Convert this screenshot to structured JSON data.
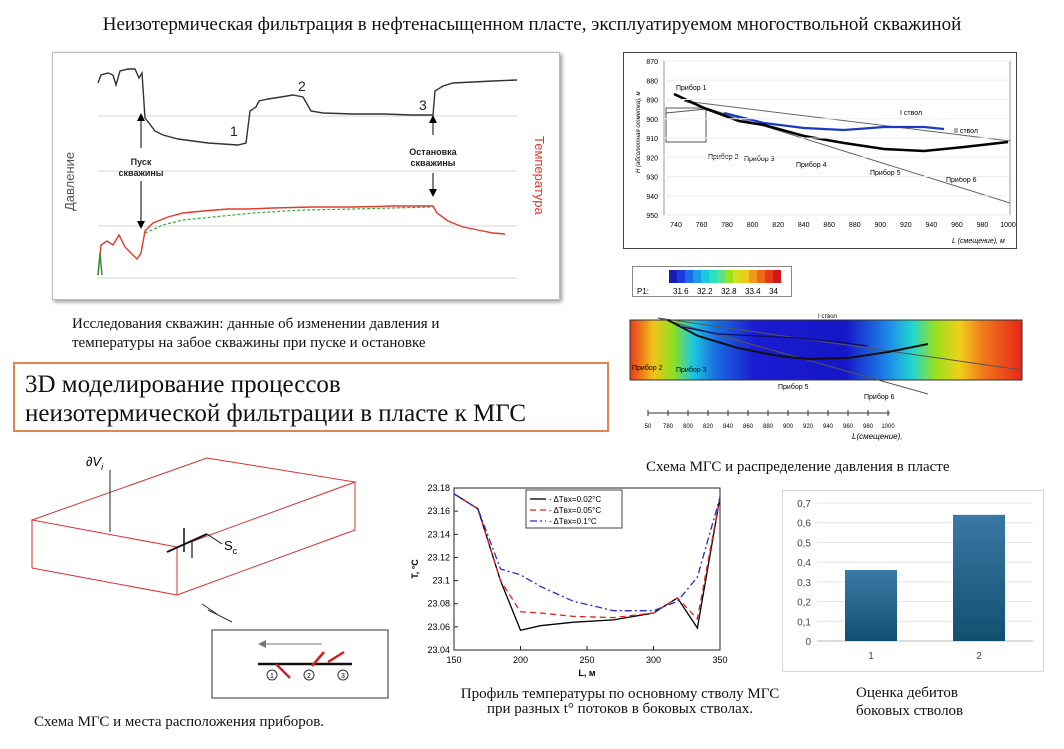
{
  "title": "Неизотермическая фильтрация в нефтенасыщенном пласте, эксплуатируемом многоствольной скважиной",
  "captions": {
    "well_test_line1": "Исследования скважин: данные об изменении давления и",
    "well_test_line2": "температуры на забое скважины при пуске и остановке",
    "scheme_pressure": "Схема МГС и распределение давления в пласте",
    "scheme_devices": "Схема МГС и места расположения приборов.",
    "profile_line1": "Профиль температуры по основному стволу МГС",
    "profile_line2": "при разных t° потоков в боковых стволах.",
    "rates_line1": "Оценка дебитов",
    "rates_line2": "боковых стволов"
  },
  "banner": {
    "line1": "3D моделирование процессов",
    "line2": "неизотермической фильтрации в пласте к МГС"
  },
  "well_test": {
    "ylabel_left": "Давление",
    "ylabel_right": "Температура",
    "start_label_1": "Пуск",
    "start_label_2": "скважины",
    "stop_label_1": "Остановка",
    "stop_label_2": "скважины",
    "mark1": "1",
    "mark2": "2",
    "mark3": "3"
  },
  "trajectory": {
    "y_ticks": [
      "870",
      "880",
      "890",
      "900",
      "910",
      "920",
      "930",
      "940",
      "950"
    ],
    "x_ticks": [
      "740",
      "760",
      "780",
      "800",
      "820",
      "840",
      "860",
      "880",
      "900",
      "920",
      "940",
      "960",
      "980",
      "1000"
    ],
    "y_axis_label": "H (абсолютная отметка), м",
    "x_axis_label": "L (смещение), м",
    "branch1": "I ствол",
    "branch2": "II ствол",
    "devices": [
      "Прибор 1",
      "Прибор 2",
      "Прибор 3",
      "Прибор 4",
      "Прибор 5",
      "Прибор 6"
    ]
  },
  "pressure_map": {
    "legend_label": "P1:",
    "legend_ticks": [
      "31.6",
      "32.2",
      "32.8",
      "33.4",
      "34"
    ],
    "branch1": "I ствол",
    "devices": [
      "Прибор 2",
      "Прибор 3",
      "Прибор 5",
      "Прибор 6"
    ],
    "x_ticks": [
      "50",
      "780",
      "800",
      "820",
      "840",
      "860",
      "880",
      "900",
      "920",
      "940",
      "960",
      "980",
      "1000"
    ],
    "x_axis_label": "L(смещение),"
  },
  "box3d": {
    "boundary_label": "∂V",
    "boundary_sub": "i",
    "source_label": "S",
    "source_sub": "c",
    "marks": [
      "1",
      "2",
      "3"
    ]
  },
  "chart_data": [
    {
      "type": "line",
      "xlabel": "L, м",
      "ylabel": "T, °C",
      "xlim": [
        150,
        350
      ],
      "ylim": [
        23.04,
        23.18
      ],
      "x_ticks": [
        "150",
        "200",
        "250",
        "300",
        "350"
      ],
      "y_ticks": [
        "23.04",
        "23.06",
        "23.08",
        "23.1",
        "23.12",
        "23.14",
        "23.16",
        "23.18"
      ],
      "series": [
        {
          "name": "- ΔTвх=0.02°C",
          "color": "#000000",
          "dash": "",
          "x": [
            150,
            168,
            185,
            200,
            215,
            240,
            270,
            300,
            318,
            333,
            350
          ],
          "y": [
            23.175,
            23.162,
            23.1,
            23.057,
            23.061,
            23.064,
            23.066,
            23.072,
            23.085,
            23.059,
            23.172
          ]
        },
        {
          "name": "- ΔTвх=0.05°C",
          "color": "#e0201e",
          "dash": "6,4",
          "x": [
            150,
            168,
            185,
            200,
            215,
            240,
            270,
            300,
            318,
            333,
            350
          ],
          "y": [
            23.175,
            23.162,
            23.1,
            23.073,
            23.072,
            23.069,
            23.068,
            23.072,
            23.085,
            23.067,
            23.172
          ]
        },
        {
          "name": "- ΔTвх=0.1°C",
          "color": "#2a2ad0",
          "dash": "7,3,2,3",
          "x": [
            150,
            168,
            185,
            200,
            215,
            240,
            270,
            300,
            318,
            333,
            350
          ],
          "y": [
            23.175,
            23.162,
            23.11,
            23.105,
            23.095,
            23.082,
            23.074,
            23.074,
            23.082,
            23.103,
            23.172
          ]
        }
      ]
    },
    {
      "type": "bar",
      "categories": [
        "1",
        "2"
      ],
      "values": [
        0.36,
        0.64
      ],
      "ylim": [
        0,
        0.7
      ],
      "y_ticks": [
        "0",
        "0,1",
        "0,2",
        "0,3",
        "0,4",
        "0,5",
        "0,6",
        "0,7"
      ]
    }
  ]
}
